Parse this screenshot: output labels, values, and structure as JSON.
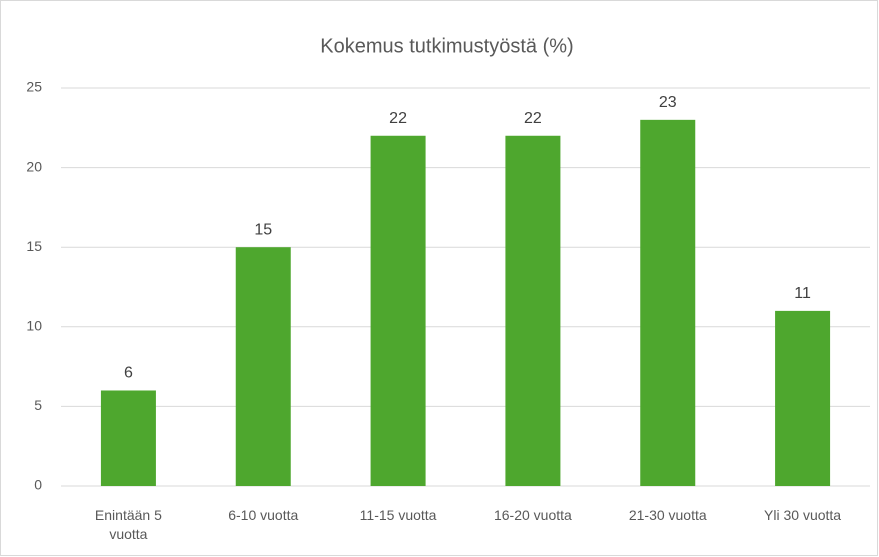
{
  "chart_data": {
    "type": "bar",
    "title": "Kokemus tutkimustyöstä (%)",
    "categories": [
      "Enintään 5 vuotta",
      "6-10 vuotta",
      "11-15 vuotta",
      "16-20 vuotta",
      "21-30 vuotta",
      "Yli 30 vuotta"
    ],
    "values": [
      6,
      15,
      22,
      22,
      23,
      11
    ],
    "color": "#4ea72e",
    "ylim": [
      0,
      25
    ],
    "yticks": [
      0,
      5,
      10,
      15,
      20,
      25
    ],
    "grid": true
  }
}
